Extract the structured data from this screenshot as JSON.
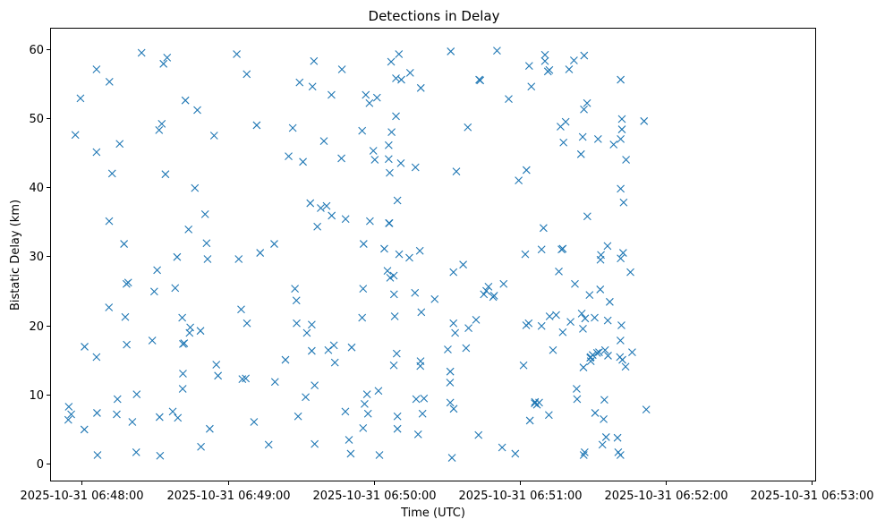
{
  "chart_data": {
    "type": "scatter",
    "title": "Detections in Delay",
    "xlabel": "Time (UTC)",
    "ylabel": "Bistatic Delay (km)",
    "x_unit": "seconds after 2025-10-31 06:48:00",
    "xlim": [
      -12.6,
      301.3
    ],
    "ylim": [
      -2.5,
      63
    ],
    "x_ticks": [
      {
        "value": 0,
        "label": "2025-10-31 06:48:00"
      },
      {
        "value": 60,
        "label": "2025-10-31 06:49:00"
      },
      {
        "value": 120,
        "label": "2025-10-31 06:50:00"
      },
      {
        "value": 180,
        "label": "2025-10-31 06:51:00"
      },
      {
        "value": 240,
        "label": "2025-10-31 06:52:00"
      },
      {
        "value": 300,
        "label": "2025-10-31 06:53:00"
      }
    ],
    "y_ticks": [
      {
        "value": 0,
        "label": "0"
      },
      {
        "value": 10,
        "label": "10"
      },
      {
        "value": 20,
        "label": "20"
      },
      {
        "value": 30,
        "label": "30"
      },
      {
        "value": 40,
        "label": "40"
      },
      {
        "value": 50,
        "label": "50"
      },
      {
        "value": 60,
        "label": "60"
      }
    ],
    "marker": "x",
    "color": "#1f77b4",
    "grid": false,
    "points": [
      [
        -5.3,
        8.2
      ],
      [
        -5.5,
        6.3
      ],
      [
        -4.3,
        7.1
      ],
      [
        -2.6,
        47.6
      ],
      [
        -0.5,
        52.9
      ],
      [
        1.2,
        16.9
      ],
      [
        1.1,
        4.9
      ],
      [
        6.1,
        57.1
      ],
      [
        6.1,
        45.1
      ],
      [
        6.1,
        15.4
      ],
      [
        6.3,
        7.3
      ],
      [
        6.5,
        1.2
      ],
      [
        11.4,
        55.3
      ],
      [
        11.3,
        35.1
      ],
      [
        11.2,
        22.6
      ],
      [
        12.5,
        42.0
      ],
      [
        14.4,
        7.1
      ],
      [
        14.7,
        9.3
      ],
      [
        15.6,
        46.3
      ],
      [
        17.4,
        31.8
      ],
      [
        17.9,
        21.2
      ],
      [
        18.5,
        17.2
      ],
      [
        18.4,
        26.0
      ],
      [
        19.1,
        26.2
      ],
      [
        20.8,
        6.0
      ],
      [
        22.6,
        10.0
      ],
      [
        22.4,
        1.6
      ],
      [
        24.6,
        59.5
      ],
      [
        29.0,
        17.8
      ],
      [
        29.8,
        24.9
      ],
      [
        31.0,
        28.0
      ],
      [
        32.0,
        6.7
      ],
      [
        32.2,
        1.1
      ],
      [
        31.8,
        48.3
      ],
      [
        32.9,
        49.2
      ],
      [
        33.6,
        57.9
      ],
      [
        34.4,
        41.9
      ],
      [
        35.1,
        58.8
      ],
      [
        37.4,
        7.5
      ],
      [
        38.4,
        25.4
      ],
      [
        39.2,
        29.9
      ],
      [
        39.5,
        6.6
      ],
      [
        41.3,
        21.1
      ],
      [
        41.6,
        17.3
      ],
      [
        41.6,
        13.0
      ],
      [
        41.5,
        10.8
      ],
      [
        42.1,
        17.4
      ],
      [
        42.6,
        52.6
      ],
      [
        43.9,
        33.9
      ],
      [
        44.3,
        18.9
      ],
      [
        44.6,
        19.7
      ],
      [
        46.5,
        39.9
      ],
      [
        47.5,
        51.2
      ],
      [
        48.8,
        19.2
      ],
      [
        49.0,
        2.4
      ],
      [
        50.7,
        36.1
      ],
      [
        51.3,
        31.9
      ],
      [
        51.7,
        29.6
      ],
      [
        52.6,
        5.0
      ],
      [
        54.4,
        47.5
      ],
      [
        55.3,
        14.3
      ],
      [
        56.0,
        12.7
      ],
      [
        63.7,
        59.3
      ],
      [
        64.5,
        29.6
      ],
      [
        65.5,
        22.3
      ],
      [
        66.0,
        12.2
      ],
      [
        67.4,
        12.3
      ],
      [
        67.9,
        20.3
      ],
      [
        67.8,
        56.4
      ],
      [
        70.8,
        6.0
      ],
      [
        71.9,
        49.0
      ],
      [
        73.3,
        30.5
      ],
      [
        76.8,
        2.7
      ],
      [
        79.4,
        11.8
      ],
      [
        79.1,
        31.8
      ],
      [
        83.7,
        15.0
      ],
      [
        85.0,
        44.5
      ],
      [
        86.7,
        48.6
      ],
      [
        87.6,
        25.3
      ],
      [
        88.2,
        23.6
      ],
      [
        88.3,
        20.3
      ],
      [
        88.9,
        6.8
      ],
      [
        89.5,
        55.2
      ],
      [
        90.9,
        43.7
      ],
      [
        92.0,
        9.6
      ],
      [
        92.5,
        18.9
      ],
      [
        93.9,
        37.7
      ],
      [
        94.5,
        20.1
      ],
      [
        94.5,
        16.3
      ],
      [
        94.8,
        54.6
      ],
      [
        95.4,
        58.3
      ],
      [
        95.7,
        11.3
      ],
      [
        95.7,
        2.8
      ],
      [
        96.8,
        34.3
      ],
      [
        98.2,
        37.0
      ],
      [
        99.5,
        46.7
      ],
      [
        100.6,
        37.3
      ],
      [
        101.3,
        16.4
      ],
      [
        102.7,
        35.9
      ],
      [
        102.6,
        53.4
      ],
      [
        103.6,
        17.1
      ],
      [
        104.0,
        14.6
      ],
      [
        106.7,
        44.2
      ],
      [
        106.9,
        57.1
      ],
      [
        108.4,
        35.4
      ],
      [
        108.3,
        7.5
      ],
      [
        109.8,
        3.4
      ],
      [
        110.5,
        1.4
      ],
      [
        110.9,
        16.8
      ],
      [
        115.2,
        48.2
      ],
      [
        115.8,
        31.8
      ],
      [
        115.6,
        25.3
      ],
      [
        115.2,
        21.1
      ],
      [
        116.2,
        8.6
      ],
      [
        115.6,
        5.1
      ],
      [
        116.7,
        53.4
      ],
      [
        117.2,
        10.0
      ],
      [
        117.6,
        7.2
      ],
      [
        118.2,
        52.2
      ],
      [
        118.4,
        35.1
      ],
      [
        119.8,
        45.3
      ],
      [
        120.4,
        44.0
      ],
      [
        121.3,
        53.0
      ],
      [
        121.9,
        10.5
      ],
      [
        122.3,
        1.2
      ],
      [
        124.3,
        31.1
      ],
      [
        125.6,
        27.9
      ],
      [
        126.1,
        46.1
      ],
      [
        126.1,
        44.1
      ],
      [
        126.5,
        42.1
      ],
      [
        126.2,
        34.8
      ],
      [
        126.4,
        34.8
      ],
      [
        126.7,
        26.9
      ],
      [
        127.1,
        58.2
      ],
      [
        127.3,
        48.0
      ],
      [
        128.2,
        27.2
      ],
      [
        128.3,
        24.5
      ],
      [
        128.6,
        21.3
      ],
      [
        128.2,
        14.2
      ],
      [
        129.1,
        50.3
      ],
      [
        129.1,
        55.8
      ],
      [
        129.4,
        15.9
      ],
      [
        129.7,
        38.1
      ],
      [
        129.7,
        6.8
      ],
      [
        129.7,
        5.0
      ],
      [
        130.3,
        59.3
      ],
      [
        130.4,
        30.3
      ],
      [
        131.3,
        55.6
      ],
      [
        131.1,
        43.5
      ],
      [
        134.6,
        29.8
      ],
      [
        134.9,
        56.6
      ],
      [
        136.9,
        24.7
      ],
      [
        137.1,
        42.9
      ],
      [
        137.4,
        9.3
      ],
      [
        138.2,
        4.2
      ],
      [
        138.9,
        30.8
      ],
      [
        139.3,
        54.4
      ],
      [
        139.5,
        21.9
      ],
      [
        139.2,
        14.8
      ],
      [
        139.1,
        14.1
      ],
      [
        140.0,
        7.2
      ],
      [
        140.6,
        9.4
      ],
      [
        145.0,
        23.8
      ],
      [
        150.4,
        16.5
      ],
      [
        151.4,
        13.3
      ],
      [
        151.3,
        11.7
      ],
      [
        151.4,
        8.8
      ],
      [
        151.6,
        59.7
      ],
      [
        152.1,
        0.8
      ],
      [
        152.7,
        27.7
      ],
      [
        152.7,
        20.3
      ],
      [
        152.8,
        7.9
      ],
      [
        153.4,
        18.9
      ],
      [
        153.9,
        42.3
      ],
      [
        156.7,
        28.8
      ],
      [
        157.9,
        16.7
      ],
      [
        158.6,
        48.7
      ],
      [
        158.9,
        19.6
      ],
      [
        162.0,
        20.8
      ],
      [
        163.0,
        4.1
      ],
      [
        163.3,
        55.6
      ],
      [
        163.7,
        55.5
      ],
      [
        165.2,
        24.5
      ],
      [
        166.2,
        25.0
      ],
      [
        167.1,
        25.6
      ],
      [
        169.0,
        24.1
      ],
      [
        169.4,
        24.3
      ],
      [
        170.6,
        59.8
      ],
      [
        173.3,
        26.0
      ],
      [
        172.7,
        2.3
      ],
      [
        175.4,
        52.8
      ],
      [
        178.1,
        1.4
      ],
      [
        179.5,
        41.0
      ],
      [
        181.5,
        14.2
      ],
      [
        182.2,
        30.3
      ],
      [
        182.7,
        42.5
      ],
      [
        182.6,
        20.0
      ],
      [
        183.6,
        20.3
      ],
      [
        183.8,
        57.6
      ],
      [
        184.1,
        6.2
      ],
      [
        184.7,
        54.6
      ],
      [
        186.1,
        8.7
      ],
      [
        186.2,
        8.9
      ],
      [
        187.0,
        8.5
      ],
      [
        187.9,
        8.8
      ],
      [
        188.9,
        31.0
      ],
      [
        188.9,
        19.9
      ],
      [
        189.7,
        34.1
      ],
      [
        190.3,
        59.2
      ],
      [
        190.3,
        58.3
      ],
      [
        191.5,
        56.8
      ],
      [
        192.1,
        57.0
      ],
      [
        191.9,
        7.0
      ],
      [
        192.2,
        21.3
      ],
      [
        193.6,
        16.4
      ],
      [
        194.9,
        21.5
      ],
      [
        196.0,
        27.8
      ],
      [
        196.7,
        48.8
      ],
      [
        197.1,
        31.0
      ],
      [
        197.6,
        31.1
      ],
      [
        197.9,
        46.5
      ],
      [
        197.6,
        19.0
      ],
      [
        198.8,
        49.5
      ],
      [
        200.2,
        57.1
      ],
      [
        200.8,
        20.5
      ],
      [
        202.6,
        26.0
      ],
      [
        202.2,
        58.4
      ],
      [
        203.3,
        10.8
      ],
      [
        203.5,
        9.3
      ],
      [
        205.1,
        44.8
      ],
      [
        205.4,
        21.7
      ],
      [
        205.8,
        47.3
      ],
      [
        205.9,
        19.5
      ],
      [
        206.1,
        13.9
      ],
      [
        206.2,
        1.2
      ],
      [
        206.3,
        51.3
      ],
      [
        206.4,
        59.1
      ],
      [
        206.6,
        1.6
      ],
      [
        206.8,
        21.0
      ],
      [
        207.6,
        52.2
      ],
      [
        207.7,
        35.8
      ],
      [
        208.6,
        24.4
      ],
      [
        208.9,
        15.3
      ],
      [
        209.1,
        14.8
      ],
      [
        209.1,
        15.4
      ],
      [
        209.9,
        15.7
      ],
      [
        210.7,
        21.1
      ],
      [
        210.9,
        7.3
      ],
      [
        211.7,
        16.0
      ],
      [
        212.1,
        47.0
      ],
      [
        212.5,
        16.1
      ],
      [
        213.0,
        25.2
      ],
      [
        213.1,
        29.5
      ],
      [
        213.3,
        30.2
      ],
      [
        213.9,
        2.7
      ],
      [
        214.4,
        6.4
      ],
      [
        214.7,
        9.2
      ],
      [
        215.0,
        16.4
      ],
      [
        215.4,
        3.8
      ],
      [
        216.0,
        31.5
      ],
      [
        216.1,
        20.7
      ],
      [
        216.2,
        15.6
      ],
      [
        216.9,
        23.4
      ],
      [
        218.5,
        46.2
      ],
      [
        220.1,
        3.7
      ],
      [
        220.4,
        1.6
      ],
      [
        221.3,
        17.8
      ],
      [
        221.1,
        15.4
      ],
      [
        221.3,
        1.2
      ],
      [
        221.4,
        29.7
      ],
      [
        221.4,
        39.8
      ],
      [
        221.4,
        47.0
      ],
      [
        221.4,
        55.6
      ],
      [
        221.9,
        48.4
      ],
      [
        221.9,
        49.9
      ],
      [
        221.7,
        20.0
      ],
      [
        222.1,
        15.0
      ],
      [
        222.4,
        30.5
      ],
      [
        222.6,
        37.8
      ],
      [
        223.4,
        14.0
      ],
      [
        223.6,
        44.0
      ],
      [
        225.4,
        27.7
      ],
      [
        226.1,
        16.1
      ],
      [
        231.0,
        49.6
      ],
      [
        231.9,
        7.8
      ]
    ]
  }
}
